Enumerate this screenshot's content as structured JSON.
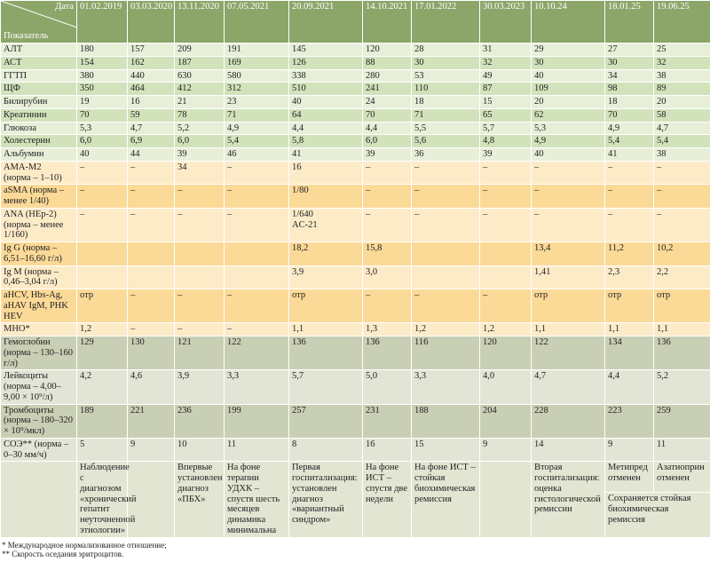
{
  "header": {
    "corner_top": "Дата",
    "corner_bottom": "Показатель",
    "dates": [
      "01.02.2019",
      "03.03.2020",
      "13.11.2020",
      "07.05.2021",
      "20.09.2021",
      "14.10.2021",
      "17.01.2022",
      "30.03.2023",
      "10.10.24",
      "18.01.25",
      "19.06.25"
    ]
  },
  "table": {
    "rows": [
      {
        "label": "АЛТ",
        "cells": [
          "180",
          "157",
          "209",
          "191",
          "145",
          "120",
          "28",
          "31",
          "29",
          "27",
          "25"
        ]
      },
      {
        "label": "АСТ",
        "cells": [
          "154",
          "162",
          "187",
          "169",
          "126",
          "88",
          "30",
          "32",
          "30",
          "30",
          "32"
        ]
      },
      {
        "label": "ГГТП",
        "cells": [
          "380",
          "440",
          "630",
          "580",
          "338",
          "280",
          "53",
          "49",
          "40",
          "34",
          "38"
        ]
      },
      {
        "label": "ЩФ",
        "cells": [
          "350",
          "464",
          "412",
          "312",
          "510",
          "241",
          "110",
          "87",
          "109",
          "98",
          "89"
        ]
      },
      {
        "label": "Билирубин",
        "cells": [
          "19",
          "16",
          "21",
          "23",
          "40",
          "24",
          "18",
          "15",
          "20",
          "18",
          "20"
        ]
      },
      {
        "label": "Креатинин",
        "cells": [
          "70",
          "59",
          "78",
          "71",
          "64",
          "70",
          "71",
          "65",
          "62",
          "70",
          "58"
        ]
      },
      {
        "label": "Глюкоза",
        "cells": [
          "5,3",
          "4,7",
          "5,2",
          "4,9",
          "4,4",
          "4,4",
          "5,5",
          "5,7",
          "5,3",
          "4,9",
          "4,7"
        ]
      },
      {
        "label": "Холестерин",
        "cells": [
          "6,0",
          "6,9",
          "6,0",
          "5,4",
          "5,8",
          "6,0",
          "5,6",
          "4,8",
          "4,9",
          "5,4",
          "5,4"
        ]
      },
      {
        "label": "Альбумин",
        "cells": [
          "40",
          "44",
          "39",
          "46",
          "41",
          "39",
          "36",
          "39",
          "40",
          "41",
          "38"
        ]
      },
      {
        "label": "AMA-M2\n(норма – 1–10)",
        "cells": [
          "–",
          "–",
          "34",
          "–",
          "16",
          "–",
          "–",
          "–",
          "–",
          "–",
          "–"
        ]
      },
      {
        "label": "aSMA (норма – менее 1/40)",
        "cells": [
          "–",
          "–",
          "–",
          "–",
          "1/80",
          "–",
          "–",
          "–",
          "–",
          "–",
          "–"
        ]
      },
      {
        "label": "ANA (HEp-2) (норма – менее 1/160)",
        "cells": [
          "–",
          "–",
          "–",
          "–",
          "1/640\nAC-21",
          "–",
          "–",
          "–",
          "–",
          "–",
          "–"
        ]
      },
      {
        "label": "Ig G (норма – 6,51–16,60 г/л)",
        "cells": [
          null,
          null,
          null,
          null,
          "18,2",
          "15,8",
          null,
          null,
          "13,4",
          "11,2",
          "10,2"
        ]
      },
      {
        "label": "Ig M (норма – 0,46–3,04 г/л)",
        "cells": [
          null,
          null,
          null,
          null,
          "3,9",
          "3,0",
          null,
          null,
          "1,41",
          "2,3",
          "2,2"
        ]
      },
      {
        "label": "aHCV, Hbs-Ag, aHAV IgM, PHK HEV",
        "cells": [
          "отр",
          "–",
          "–",
          "–",
          "отр",
          "–",
          "–",
          "–",
          "отр",
          "отр",
          "отр"
        ]
      },
      {
        "label": "МНО*",
        "cells": [
          "1,2",
          "–",
          "–",
          "–",
          "1,1",
          "1,3",
          "1,2",
          "1,2",
          "1,1",
          "1,1",
          "1,1"
        ]
      },
      {
        "label": "Гемоглобин (норма – 130–160 г/л)",
        "cells": [
          "129",
          "130",
          "121",
          "122",
          "136",
          "136",
          "116",
          "120",
          "122",
          "134",
          "136"
        ]
      },
      {
        "label": "Лейкоциты (норма – 4,00–9,00 × 10⁹/л)",
        "cells": [
          "4,2",
          "4,6",
          "3,9",
          "3,3",
          "5,7",
          "5,0",
          "3,3",
          "4,0",
          "4,7",
          "4,4",
          "5,2"
        ]
      },
      {
        "label": "Тромбоциты (норма – 180–320 × 10⁹/мкл)",
        "cells": [
          "189",
          "221",
          "236",
          "199",
          "257",
          "231",
          "188",
          "204",
          "228",
          "223",
          "259"
        ]
      },
      {
        "label": "СОЭ** (норма – 0–30 мм/ч)",
        "cells": [
          "5",
          "9",
          "10",
          "11",
          "8",
          "16",
          "15",
          "9",
          "14",
          "9",
          "11"
        ]
      }
    ]
  },
  "notes": {
    "cells": [
      "Наблюдение с диагнозом «хронический гепатит неуточненной этиологии»",
      null,
      "Впервые установлен диагноз «ПБХ»",
      "На фоне терапии УДХК – спустя шесть месяцев динамика минимальна",
      "Первая госпитализация: установлен диагноз «вариантный синдром»",
      "На фоне ИСТ – спустя две недели",
      "На фоне ИСТ – стойкая биохимическая ремиссия",
      null,
      "Вторая госпитализация: оценка гистологической ремиссии",
      "Метипред отменен",
      "Азатиоприн отменен"
    ],
    "shared": "Сохраняется стойкая биохимическая ремиссия"
  },
  "footnotes": [
    "* Международное нормализованное отношение;",
    "** Скорость оседания эритроцитов."
  ]
}
